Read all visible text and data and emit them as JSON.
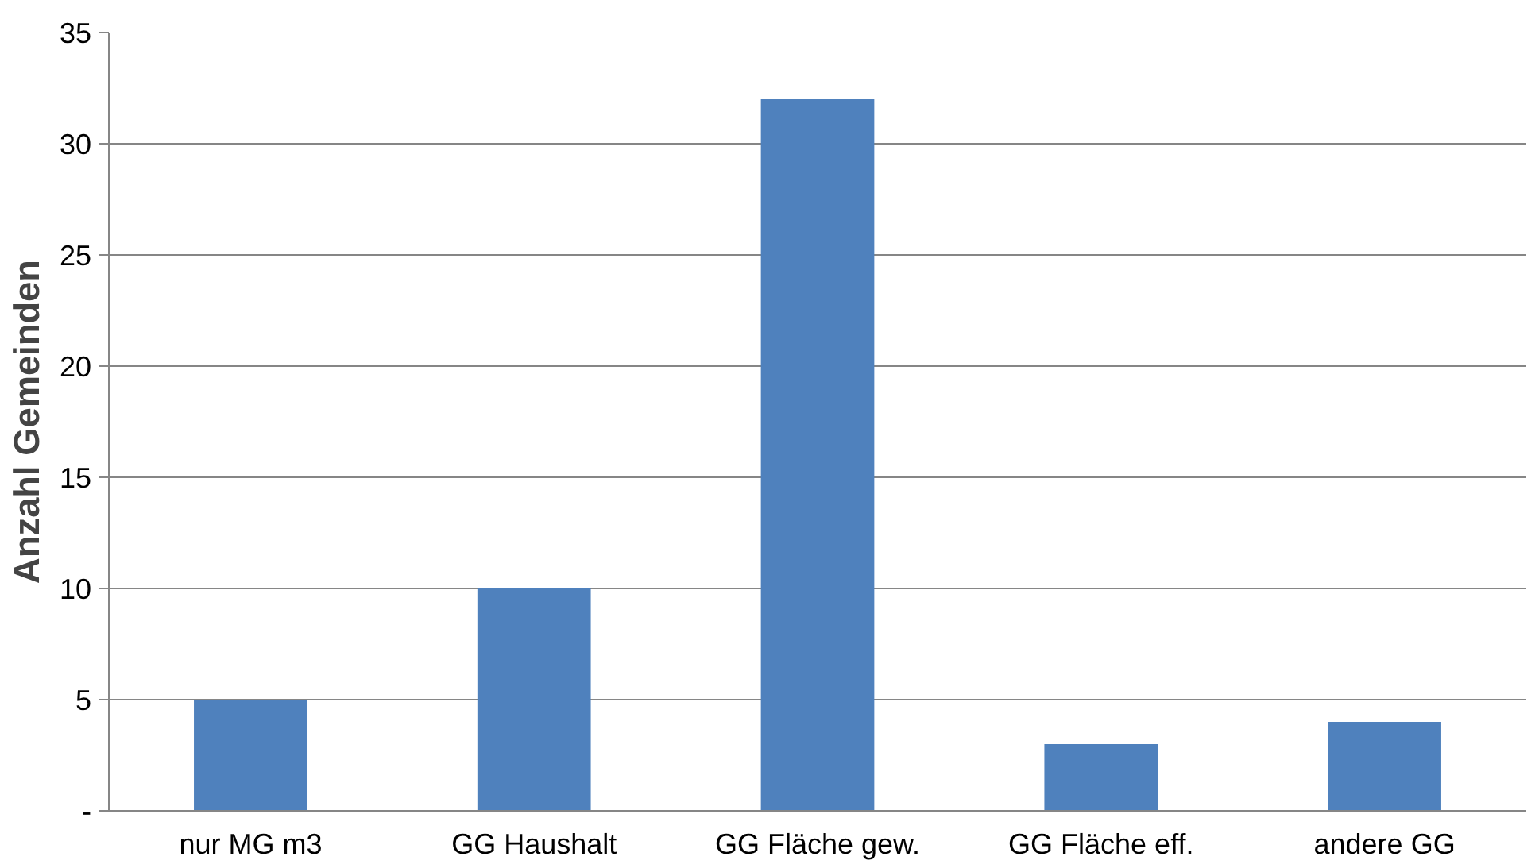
{
  "chart_data": {
    "type": "bar",
    "ylabel": "Anzahl Gemeinden",
    "categories": [
      "nur MG m3",
      "GG Haushalt",
      "GG Fläche gew.",
      "GG Fläche eff.",
      "andere GG"
    ],
    "values": [
      5,
      10,
      32,
      3,
      4
    ],
    "color": "#4f81bd",
    "ylim": [
      0,
      35
    ],
    "yticks": [
      {
        "value": 0,
        "label": "-"
      },
      5,
      10,
      15,
      20,
      25,
      30,
      35
    ],
    "grid": "y"
  }
}
